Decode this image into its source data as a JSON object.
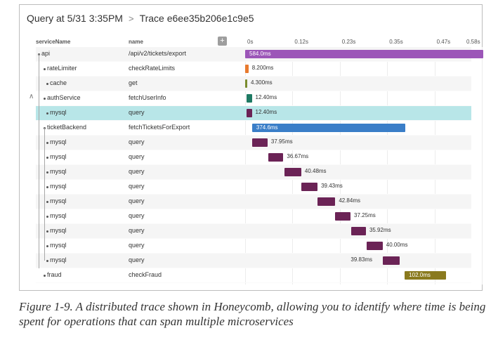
{
  "header": {
    "query": "Query at 5/31 3:35PM",
    "separator": ">",
    "trace": "Trace e6ee35b206e1c9e5"
  },
  "columns": {
    "service": "serviceName",
    "name": "name",
    "add_button": "+"
  },
  "axis": {
    "ticks": [
      "0s",
      "0.12s",
      "0.23s",
      "0.35s",
      "0.47s",
      "0.58s"
    ],
    "max_seconds": 0.58
  },
  "rows": [
    {
      "service": "api",
      "name": "/api/v2/tickets/export",
      "start_ms": 0,
      "duration_ms": 584.0,
      "label": "584.0ms",
      "color": "#9c56b8",
      "label_inside": true,
      "depth": 0
    },
    {
      "service": "rateLimiter",
      "name": "checkRateLimits",
      "start_ms": 0,
      "duration_ms": 8.2,
      "label": "8.200ms",
      "color": "#e87a2e",
      "label_inside": false,
      "depth": 1
    },
    {
      "service": "cache",
      "name": "get",
      "start_ms": 0,
      "duration_ms": 4.3,
      "label": "4.300ms",
      "color": "#7a8c2e",
      "label_inside": false,
      "depth": 2
    },
    {
      "service": "authService",
      "name": "fetchUserInfo",
      "start_ms": 4,
      "duration_ms": 12.4,
      "label": "12.40ms",
      "color": "#1e7a63",
      "label_inside": false,
      "depth": 1
    },
    {
      "service": "mysql",
      "name": "query",
      "start_ms": 4,
      "duration_ms": 12.4,
      "label": "12.40ms",
      "color": "#6b2356",
      "label_inside": false,
      "depth": 2,
      "selected": true
    },
    {
      "service": "ticketBackend",
      "name": "fetchTicketsForExport",
      "start_ms": 17,
      "duration_ms": 374.6,
      "label": "374.6ms",
      "color": "#3a7ec8",
      "label_inside": true,
      "depth": 1
    },
    {
      "service": "mysql",
      "name": "query",
      "start_ms": 17,
      "duration_ms": 37.95,
      "label": "37.95ms",
      "color": "#6b2356",
      "label_inside": false,
      "depth": 2
    },
    {
      "service": "mysql",
      "name": "query",
      "start_ms": 57,
      "duration_ms": 36.67,
      "label": "36.67ms",
      "color": "#6b2356",
      "label_inside": false,
      "depth": 2
    },
    {
      "service": "mysql",
      "name": "query",
      "start_ms": 97,
      "duration_ms": 40.48,
      "label": "40.48ms",
      "color": "#6b2356",
      "label_inside": false,
      "depth": 2
    },
    {
      "service": "mysql",
      "name": "query",
      "start_ms": 138,
      "duration_ms": 39.43,
      "label": "39.43ms",
      "color": "#6b2356",
      "label_inside": false,
      "depth": 2
    },
    {
      "service": "mysql",
      "name": "query",
      "start_ms": 178,
      "duration_ms": 42.84,
      "label": "42.84ms",
      "color": "#6b2356",
      "label_inside": false,
      "depth": 2
    },
    {
      "service": "mysql",
      "name": "query",
      "start_ms": 221,
      "duration_ms": 37.25,
      "label": "37.25ms",
      "color": "#6b2356",
      "label_inside": false,
      "depth": 2
    },
    {
      "service": "mysql",
      "name": "query",
      "start_ms": 260,
      "duration_ms": 35.92,
      "label": "35.92ms",
      "color": "#6b2356",
      "label_inside": false,
      "depth": 2
    },
    {
      "service": "mysql",
      "name": "query",
      "start_ms": 297,
      "duration_ms": 40.0,
      "label": "40.00ms",
      "color": "#6b2356",
      "label_inside": false,
      "depth": 2
    },
    {
      "service": "mysql",
      "name": "query",
      "start_ms": 338,
      "duration_ms": 39.83,
      "label": "39.83ms",
      "color": "#6b2356",
      "label_inside": false,
      "label_left": true,
      "depth": 2
    },
    {
      "service": "fraud",
      "name": "checkFraud",
      "start_ms": 391,
      "duration_ms": 102.0,
      "label": "102.0ms",
      "color": "#8a7a1e",
      "label_inside": true,
      "depth": 1
    }
  ],
  "caption": "Figure 1-9. A distributed trace shown in Honeycomb, allowing you to identify where time is being spent for operations that can span multiple microservices"
}
